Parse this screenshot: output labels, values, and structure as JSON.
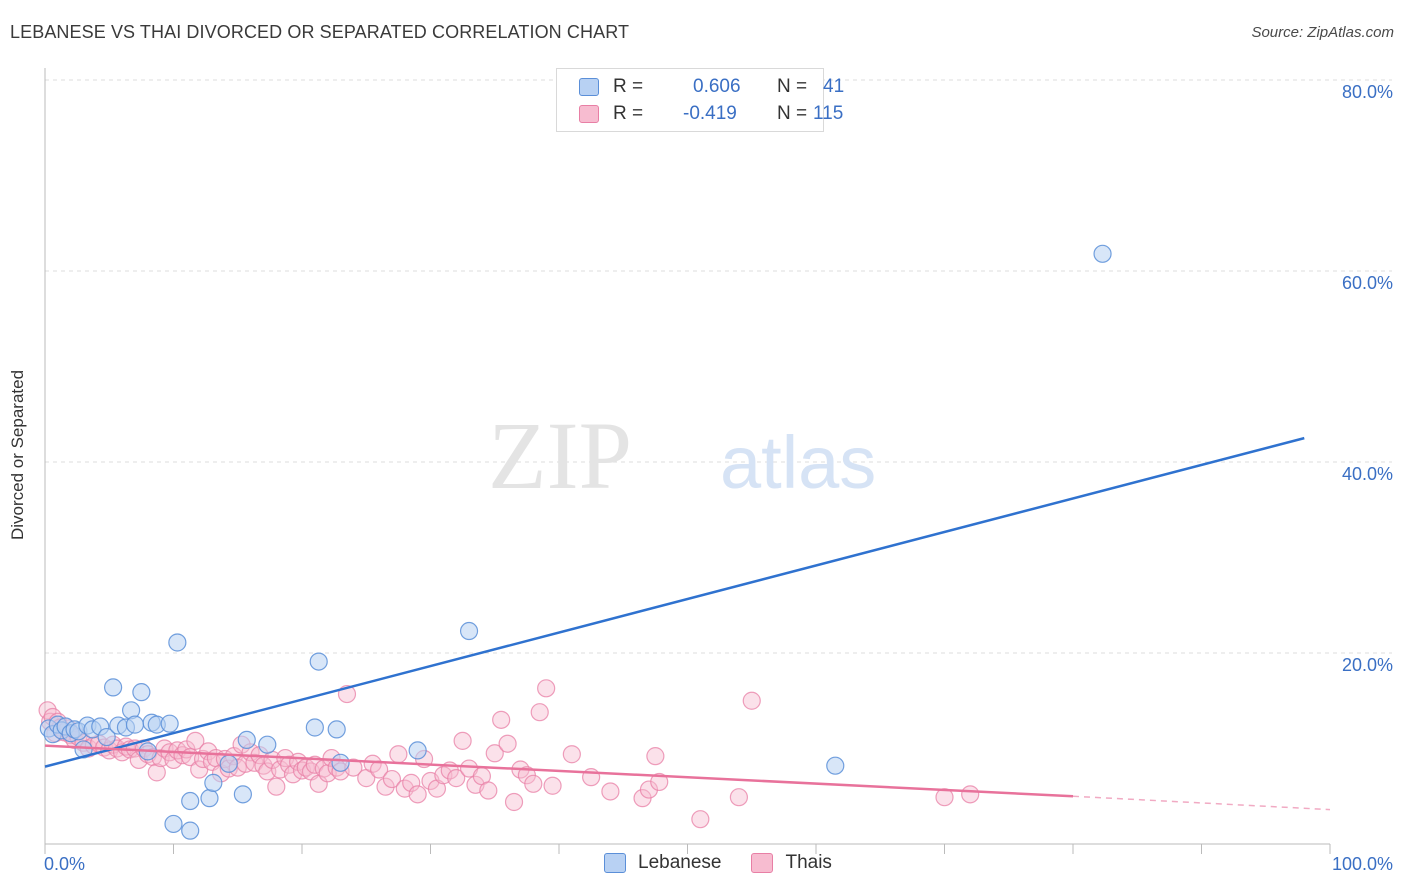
{
  "title": "LEBANESE VS THAI DIVORCED OR SEPARATED CORRELATION CHART",
  "source": "Source: ZipAtlas.com",
  "watermark": {
    "zip": "ZIP",
    "atlas": "atlas"
  },
  "legend": {
    "r_label": "R =",
    "n_label": "N =",
    "lebanese": {
      "r": "0.606",
      "n": "41"
    },
    "thais": {
      "r": "-0.419",
      "n": "115"
    }
  },
  "colors": {
    "lebanese_fill": "#b8d1f3",
    "lebanese_stroke": "#5b8fd8",
    "lebanese_line": "#2f72cf",
    "thais_fill": "#f7bcd0",
    "thais_stroke": "#e87fa5",
    "thais_line": "#e8729b",
    "axis_label": "#3a6fc4"
  },
  "chart_data": {
    "type": "scatter",
    "title": "LEBANESE VS THAI DIVORCED OR SEPARATED CORRELATION CHART",
    "xlabel": "",
    "ylabel": "Divorced or Separated",
    "xlim": [
      0,
      100
    ],
    "ylim": [
      0,
      80
    ],
    "x_tick_labels": [
      "0.0%",
      "100.0%"
    ],
    "y_tick_labels": [
      "20.0%",
      "40.0%",
      "60.0%",
      "80.0%"
    ],
    "y_ticks": [
      20,
      40,
      60,
      80
    ],
    "grid": true,
    "legend_position": "top-center",
    "series": [
      {
        "name": "Lebanese",
        "r": 0.606,
        "n": 41,
        "trend": {
          "x": [
            0,
            98
          ],
          "y": [
            8.1,
            42.5
          ]
        },
        "points": [
          [
            0.3,
            12.1
          ],
          [
            0.6,
            11.5
          ],
          [
            1.0,
            12.5
          ],
          [
            1.3,
            11.9
          ],
          [
            1.6,
            12.3
          ],
          [
            2.0,
            11.6
          ],
          [
            2.3,
            12.0
          ],
          [
            2.6,
            11.8
          ],
          [
            3.0,
            9.9
          ],
          [
            3.3,
            12.4
          ],
          [
            3.7,
            12.0
          ],
          [
            4.3,
            12.3
          ],
          [
            4.8,
            11.2
          ],
          [
            5.3,
            16.4
          ],
          [
            5.7,
            12.4
          ],
          [
            6.3,
            12.2
          ],
          [
            6.7,
            14.0
          ],
          [
            7.0,
            12.5
          ],
          [
            7.5,
            15.9
          ],
          [
            8.0,
            9.7
          ],
          [
            8.3,
            12.7
          ],
          [
            8.7,
            12.5
          ],
          [
            9.7,
            12.6
          ],
          [
            10.3,
            21.1
          ],
          [
            10.0,
            2.1
          ],
          [
            11.3,
            1.4
          ],
          [
            11.3,
            4.5
          ],
          [
            12.8,
            4.8
          ],
          [
            13.1,
            6.4
          ],
          [
            14.3,
            8.4
          ],
          [
            15.4,
            5.2
          ],
          [
            15.7,
            10.9
          ],
          [
            17.3,
            10.4
          ],
          [
            21.0,
            12.2
          ],
          [
            21.3,
            19.1
          ],
          [
            22.7,
            12.0
          ],
          [
            23.0,
            8.5
          ],
          [
            29.0,
            9.8
          ],
          [
            33.0,
            22.3
          ],
          [
            61.5,
            8.2
          ],
          [
            82.3,
            61.8
          ]
        ]
      },
      {
        "name": "Thais",
        "r": -0.419,
        "n": 115,
        "trend": {
          "x": [
            0,
            80
          ],
          "y": [
            10.3,
            5.0
          ]
        },
        "trend_dashed": {
          "x": [
            80,
            100
          ],
          "y": [
            5.0,
            3.6
          ]
        },
        "points": [
          [
            0.2,
            14.0
          ],
          [
            0.4,
            12.8
          ],
          [
            0.6,
            13.3
          ],
          [
            0.8,
            11.6
          ],
          [
            1.0,
            12.8
          ],
          [
            1.2,
            12.2
          ],
          [
            1.5,
            11.7
          ],
          [
            1.8,
            12.1
          ],
          [
            2.0,
            11.4
          ],
          [
            2.3,
            10.9
          ],
          [
            2.6,
            11.2
          ],
          [
            3.0,
            10.6
          ],
          [
            3.4,
            10.0
          ],
          [
            3.8,
            10.3
          ],
          [
            4.2,
            10.5
          ],
          [
            4.6,
            10.1
          ],
          [
            5.0,
            9.8
          ],
          [
            5.3,
            10.4
          ],
          [
            5.6,
            10.0
          ],
          [
            6.0,
            9.6
          ],
          [
            6.3,
            10.2
          ],
          [
            6.6,
            9.9
          ],
          [
            7.0,
            10.0
          ],
          [
            7.3,
            8.8
          ],
          [
            7.7,
            10.0
          ],
          [
            8.0,
            9.4
          ],
          [
            8.4,
            9.1
          ],
          [
            8.7,
            7.5
          ],
          [
            9.0,
            9.0
          ],
          [
            9.3,
            10.0
          ],
          [
            9.7,
            9.6
          ],
          [
            10.0,
            8.8
          ],
          [
            10.3,
            9.8
          ],
          [
            10.7,
            9.3
          ],
          [
            11.0,
            9.9
          ],
          [
            11.3,
            9.1
          ],
          [
            11.7,
            10.8
          ],
          [
            12.0,
            7.8
          ],
          [
            12.3,
            8.9
          ],
          [
            12.7,
            9.7
          ],
          [
            13.0,
            8.6
          ],
          [
            13.3,
            9.0
          ],
          [
            13.7,
            7.4
          ],
          [
            14.0,
            8.9
          ],
          [
            14.3,
            7.9
          ],
          [
            14.7,
            9.2
          ],
          [
            15.0,
            8.0
          ],
          [
            15.3,
            10.4
          ],
          [
            15.6,
            8.4
          ],
          [
            16.0,
            9.6
          ],
          [
            16.3,
            8.5
          ],
          [
            16.7,
            9.3
          ],
          [
            17.0,
            8.2
          ],
          [
            17.3,
            7.6
          ],
          [
            17.7,
            8.8
          ],
          [
            18.0,
            6.0
          ],
          [
            18.3,
            7.8
          ],
          [
            18.7,
            9.0
          ],
          [
            19.0,
            8.3
          ],
          [
            19.3,
            7.3
          ],
          [
            19.7,
            8.6
          ],
          [
            20.0,
            7.7
          ],
          [
            20.3,
            8.0
          ],
          [
            20.7,
            7.6
          ],
          [
            21.0,
            8.3
          ],
          [
            21.3,
            6.3
          ],
          [
            21.7,
            7.9
          ],
          [
            22.0,
            7.4
          ],
          [
            22.3,
            9.0
          ],
          [
            22.7,
            8.0
          ],
          [
            23.0,
            7.6
          ],
          [
            23.5,
            15.7
          ],
          [
            24.0,
            8.0
          ],
          [
            25.0,
            6.9
          ],
          [
            25.5,
            8.4
          ],
          [
            26.0,
            7.8
          ],
          [
            26.5,
            6.0
          ],
          [
            27.0,
            6.8
          ],
          [
            27.5,
            9.4
          ],
          [
            28.0,
            5.8
          ],
          [
            28.5,
            6.4
          ],
          [
            29.0,
            5.2
          ],
          [
            29.5,
            8.9
          ],
          [
            30.0,
            6.6
          ],
          [
            30.5,
            5.8
          ],
          [
            31.0,
            7.2
          ],
          [
            31.5,
            7.7
          ],
          [
            32.0,
            6.9
          ],
          [
            32.5,
            10.8
          ],
          [
            33.0,
            7.9
          ],
          [
            33.5,
            6.2
          ],
          [
            34.0,
            7.1
          ],
          [
            34.5,
            5.6
          ],
          [
            35.0,
            9.5
          ],
          [
            35.5,
            13.0
          ],
          [
            36.0,
            10.5
          ],
          [
            36.5,
            4.4
          ],
          [
            37.0,
            7.8
          ],
          [
            37.5,
            7.2
          ],
          [
            38.0,
            6.3
          ],
          [
            38.5,
            13.8
          ],
          [
            39.0,
            16.3
          ],
          [
            39.5,
            6.1
          ],
          [
            41.0,
            9.4
          ],
          [
            42.5,
            7.0
          ],
          [
            44.0,
            5.5
          ],
          [
            46.5,
            4.8
          ],
          [
            47.0,
            5.7
          ],
          [
            47.5,
            9.2
          ],
          [
            47.8,
            6.5
          ],
          [
            51.0,
            2.6
          ],
          [
            54.0,
            4.9
          ],
          [
            55.0,
            15.0
          ],
          [
            70.0,
            4.9
          ],
          [
            72.0,
            5.2
          ]
        ]
      }
    ]
  }
}
